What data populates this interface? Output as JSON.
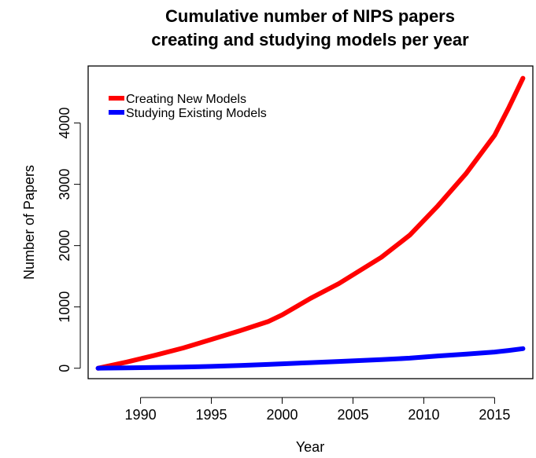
{
  "chart_data": {
    "type": "line",
    "title": [
      "Cumulative number of NIPS papers",
      "creating and studying models per year"
    ],
    "xlabel": "Year",
    "ylabel": "Number of Papers",
    "xlim": [
      1986.3,
      2017.7
    ],
    "ylim": [
      -170,
      4930
    ],
    "xticks": [
      1990,
      1995,
      2000,
      2005,
      2010,
      2015
    ],
    "yticks": [
      0,
      1000,
      2000,
      3000,
      4000
    ],
    "grid": false,
    "legend_position": "top-left",
    "x": [
      1987,
      1989,
      1991,
      1993,
      1995,
      1997,
      1999,
      2000,
      2002,
      2004,
      2007,
      2009,
      2011,
      2013,
      2015,
      2016,
      2017
    ],
    "series": [
      {
        "name": "Creating New Models",
        "color": "#ff0000",
        "values": [
          0,
          100,
          210,
          330,
          470,
          610,
          760,
          870,
          1140,
          1380,
          1810,
          2170,
          2650,
          3180,
          3800,
          4250,
          4730
        ]
      },
      {
        "name": "Studying Existing Models",
        "color": "#0000ff",
        "values": [
          0,
          5,
          12,
          20,
          30,
          45,
          62,
          72,
          92,
          110,
          140,
          165,
          200,
          230,
          265,
          290,
          320
        ]
      }
    ]
  }
}
